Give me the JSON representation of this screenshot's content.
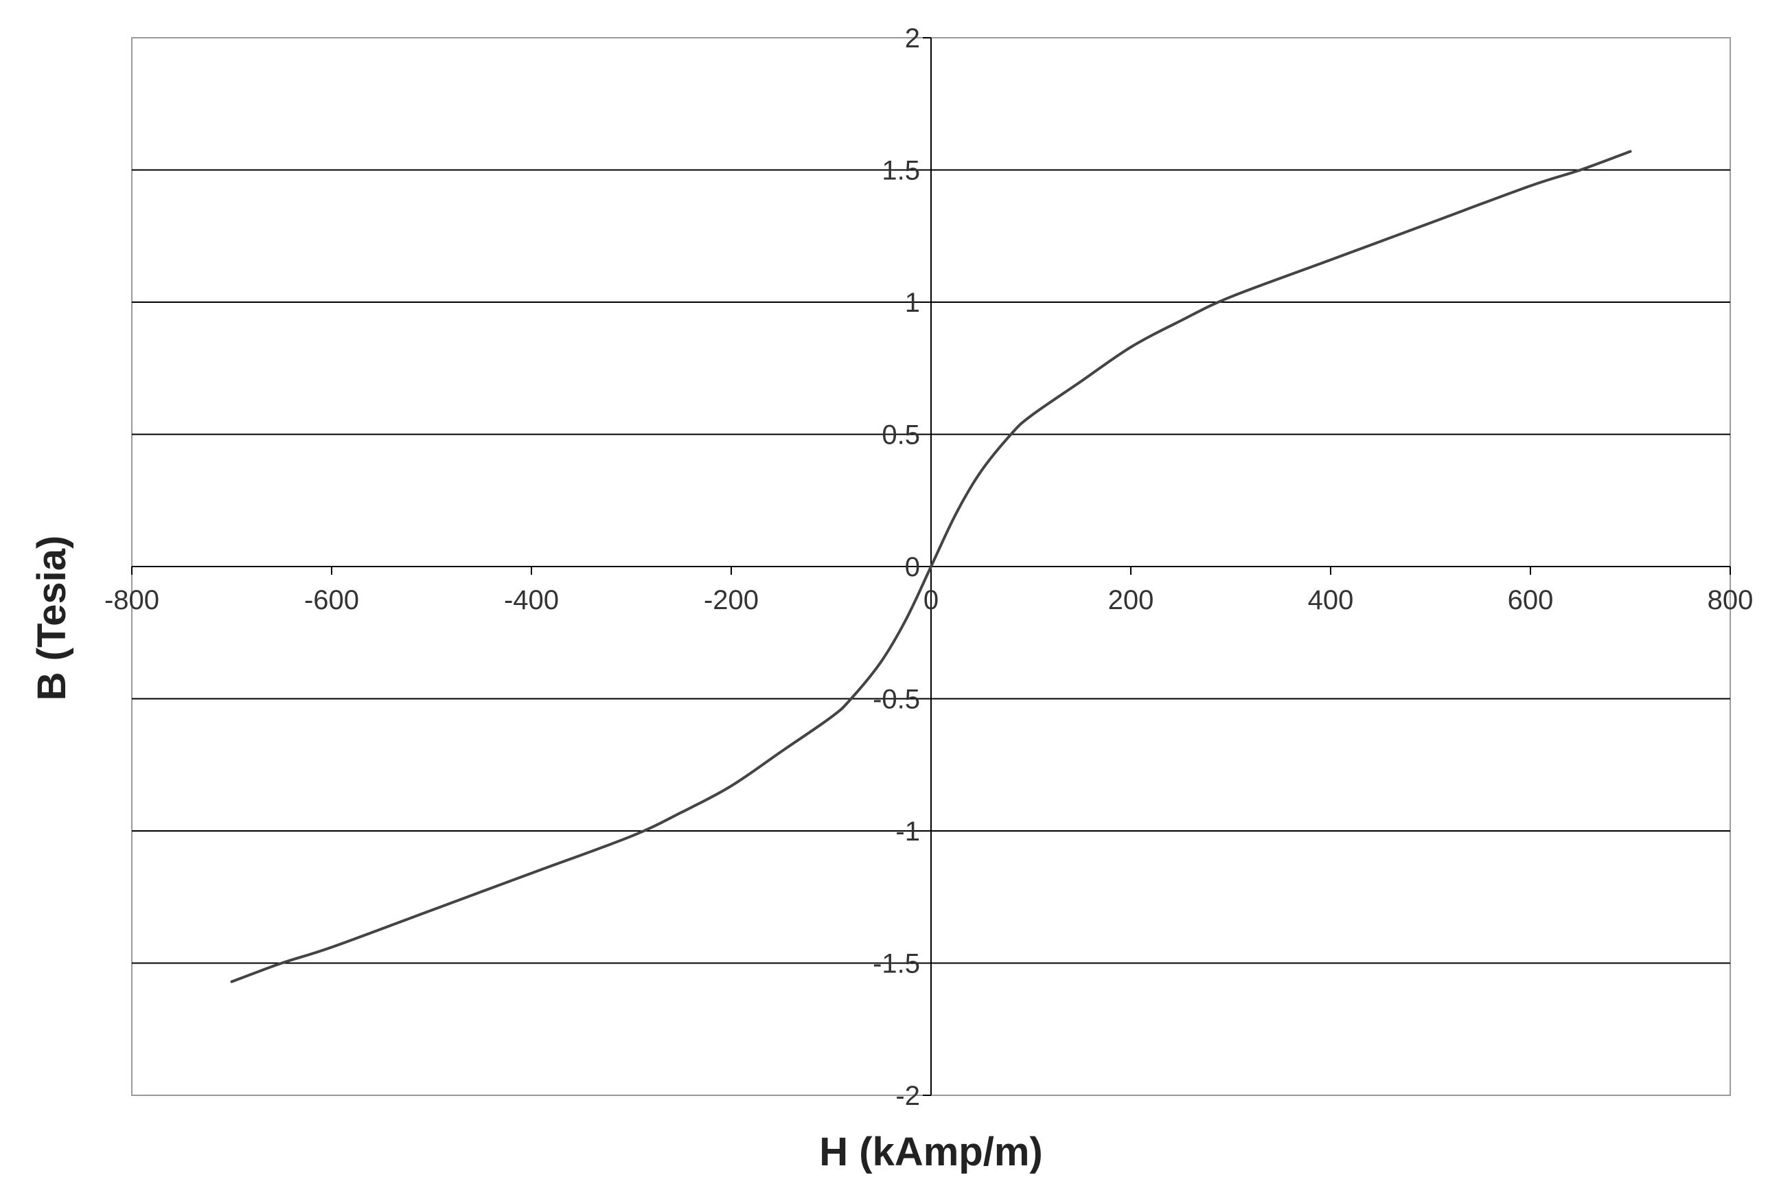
{
  "chart_data": {
    "type": "line",
    "title": "",
    "xlabel": "H (kAmp/m)",
    "ylabel": "B (Tesia)",
    "xlim": [
      -800,
      800
    ],
    "ylim": [
      -2,
      2
    ],
    "x_ticks": [
      -800,
      -600,
      -400,
      -200,
      0,
      200,
      400,
      600,
      800
    ],
    "y_ticks": [
      -2,
      -1.5,
      -1,
      -0.5,
      0,
      0.5,
      1,
      1.5,
      2
    ],
    "x_tick_labels": [
      "-800",
      "-600",
      "-400",
      "-200",
      "0",
      "200",
      "400",
      "600",
      "800"
    ],
    "y_tick_labels": [
      "-2",
      "-1.5",
      "-1",
      "-0.5",
      "0",
      "0.5",
      "1",
      "1.5",
      "2"
    ],
    "grid": "horizontal",
    "legend": "none",
    "series_color": "#444444",
    "series": [
      {
        "x": [
          -700,
          -650,
          -600,
          -500,
          -400,
          -300,
          -250,
          -200,
          -150,
          -100,
          -80,
          -50,
          -25,
          0,
          25,
          50,
          80,
          100,
          150,
          200,
          250,
          300,
          400,
          500,
          600,
          650,
          700
        ],
        "y": [
          -1.57,
          -1.5,
          -1.44,
          -1.3,
          -1.16,
          -1.02,
          -0.93,
          -0.83,
          -0.7,
          -0.57,
          -0.5,
          -0.36,
          -0.2,
          0,
          0.2,
          0.36,
          0.5,
          0.57,
          0.7,
          0.83,
          0.93,
          1.02,
          1.16,
          1.3,
          1.44,
          1.5,
          1.57
        ]
      }
    ]
  }
}
